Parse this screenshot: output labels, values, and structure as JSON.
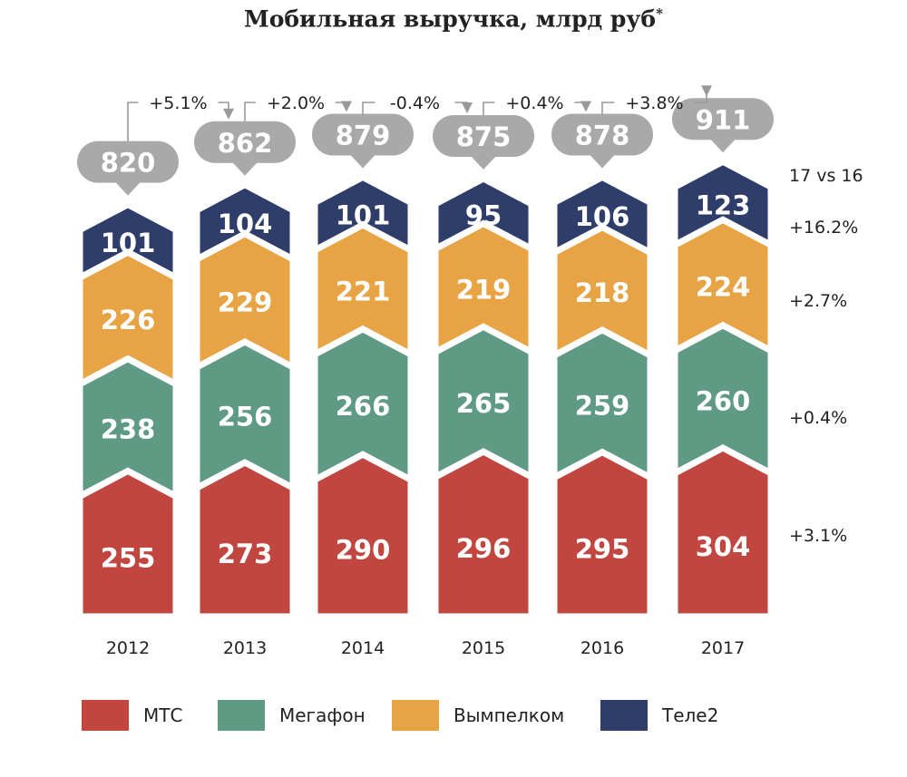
{
  "chart_data": {
    "type": "bar",
    "stacked": true,
    "title": "Мобильная выручка, млрд руб",
    "title_mark": "*",
    "categories": [
      "2012",
      "2013",
      "2014",
      "2015",
      "2016",
      "2017"
    ],
    "series": [
      {
        "name": "МТС",
        "color": "#c0463f",
        "values": [
          255,
          273,
          290,
          296,
          295,
          304
        ],
        "growth_17_vs_16": "+3.1%"
      },
      {
        "name": "Мегафон",
        "color": "#5f9a85",
        "values": [
          238,
          256,
          266,
          265,
          259,
          260
        ],
        "growth_17_vs_16": "+0.4%"
      },
      {
        "name": "Вымпелком",
        "color": "#e8a444",
        "values": [
          226,
          229,
          221,
          219,
          218,
          224
        ],
        "growth_17_vs_16": "+2.7%"
      },
      {
        "name": "Теле2",
        "color": "#2e3d6a",
        "values": [
          101,
          104,
          101,
          95,
          106,
          123
        ],
        "growth_17_vs_16": "+16.2%"
      }
    ],
    "totals": [
      "820",
      "862",
      "879",
      "875",
      "878",
      "911"
    ],
    "yoy_changes": [
      "+5.1%",
      "+2.0%",
      "-0.4%",
      "+0.4%",
      "+3.8%"
    ],
    "growth_header": "17 vs 16",
    "bubble_color": "#a9a9a9"
  }
}
